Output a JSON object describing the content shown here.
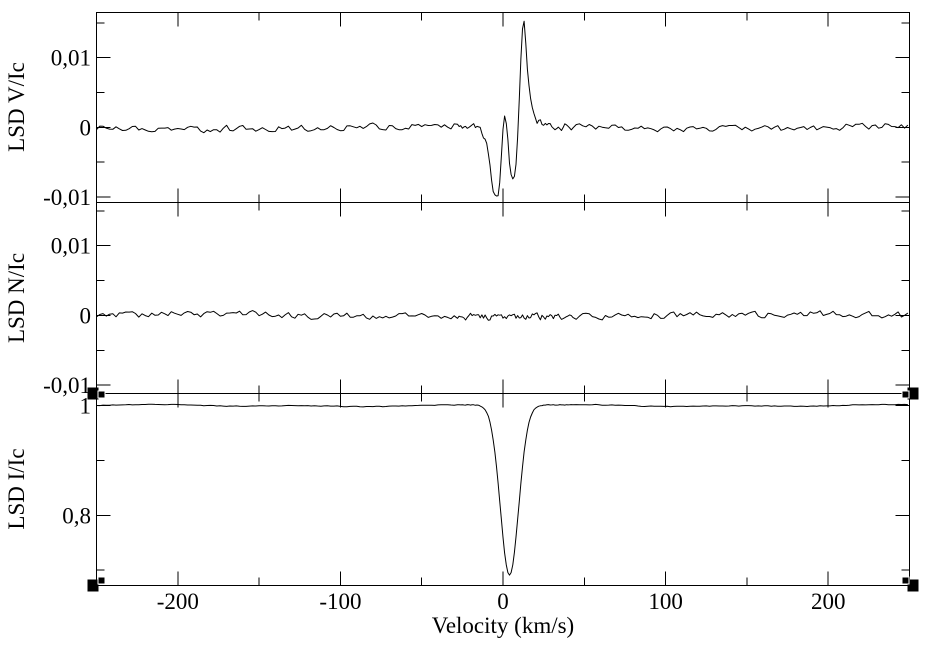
{
  "page": {
    "background_color": "#ffffff",
    "foreground_color": "#000000",
    "description": "Stacked three-panel LSD spectropolarimetric line profile plot (Stokes V, Null N, Stokes I vs velocity)"
  },
  "chart_data": {
    "type": "line",
    "title": "",
    "xlabel": "Velocity (km/s)",
    "xlim": [
      -250,
      250
    ],
    "x_major_ticks": [
      -200,
      -100,
      0,
      100,
      200
    ],
    "x_major_tick_labels": [
      "-200",
      "-100",
      "0",
      "100",
      "200"
    ],
    "x_minor_ticks": [
      -150,
      -50,
      50,
      150
    ],
    "grid": false,
    "legend_position": "none",
    "line_color": "#000000",
    "selection_handles": "corners-of-bottom-panel",
    "panels": [
      {
        "name": "stokes-v",
        "ylabel": "LSD V/Ic",
        "ylim": [
          -0.0108,
          0.0165
        ],
        "y_major_ticks": [
          0.01,
          0,
          -0.01
        ],
        "y_major_tick_labels": [
          "0,01",
          "0",
          "-0,01"
        ],
        "y_minor_ticks": [
          0.015,
          0.005,
          -0.005
        ],
        "baseline": 0,
        "noise_amplitude": 0.00042,
        "signature_points": [
          [
            -18,
            0
          ],
          [
            -15,
            -0.0004
          ],
          [
            -12,
            -0.0012
          ],
          [
            -10,
            -0.0028
          ],
          [
            -9,
            -0.0044
          ],
          [
            -8,
            -0.006
          ],
          [
            -7,
            -0.0076
          ],
          [
            -6,
            -0.0094
          ],
          [
            -5,
            -0.0102
          ],
          [
            -4,
            -0.01
          ],
          [
            -3.5,
            -0.0104
          ],
          [
            -2.5,
            -0.0103
          ],
          [
            -1.5,
            -0.007
          ],
          [
            -0.5,
            -0.0025
          ],
          [
            0.5,
            0.0008
          ],
          [
            1.5,
            0.0014
          ],
          [
            2.5,
            -0.0005
          ],
          [
            3.5,
            -0.004
          ],
          [
            4.5,
            -0.0066
          ],
          [
            5.5,
            -0.0078
          ],
          [
            6.5,
            -0.0083
          ],
          [
            7.5,
            -0.0072
          ],
          [
            8.5,
            -0.004
          ],
          [
            9.5,
            0.001
          ],
          [
            10.5,
            0.007
          ],
          [
            11.5,
            0.0125
          ],
          [
            12.5,
            0.0158
          ],
          [
            13.2,
            0.015
          ],
          [
            14,
            0.012
          ],
          [
            15,
            0.0085
          ],
          [
            16,
            0.0058
          ],
          [
            17,
            0.004
          ],
          [
            18,
            0.0028
          ],
          [
            19.5,
            0.0016
          ],
          [
            21,
            0.0009
          ],
          [
            23,
            0.0005
          ],
          [
            26,
            0.0002
          ],
          [
            30,
            0.0001
          ],
          [
            34,
            0
          ]
        ]
      },
      {
        "name": "null-n",
        "ylabel": "LSD N/Ic",
        "ylim": [
          -0.0112,
          0.0162
        ],
        "y_major_ticks": [
          0.01,
          0,
          -0.01
        ],
        "y_major_tick_labels": [
          "0,01",
          "0",
          "-0,01"
        ],
        "y_minor_ticks": [
          0.015,
          0.005,
          -0.005
        ],
        "baseline": 0,
        "noise_amplitude": 0.00045,
        "signature_points": []
      },
      {
        "name": "stokes-i",
        "ylabel": "LSD I/Ic",
        "ylim": [
          0.672,
          1.022
        ],
        "y_major_ticks": [
          1,
          0.8
        ],
        "y_major_tick_labels": [
          "1",
          "0,8"
        ],
        "y_minor_ticks": [
          0.9,
          0.7
        ],
        "baseline": 1,
        "noise_amplitude": 0.0006,
        "absorption_profile": {
          "shape": "gaussian",
          "center_km_s": 4,
          "sigma_km_s": 5.6,
          "depth": 0.31,
          "core_intensity": 0.69
        }
      }
    ]
  }
}
